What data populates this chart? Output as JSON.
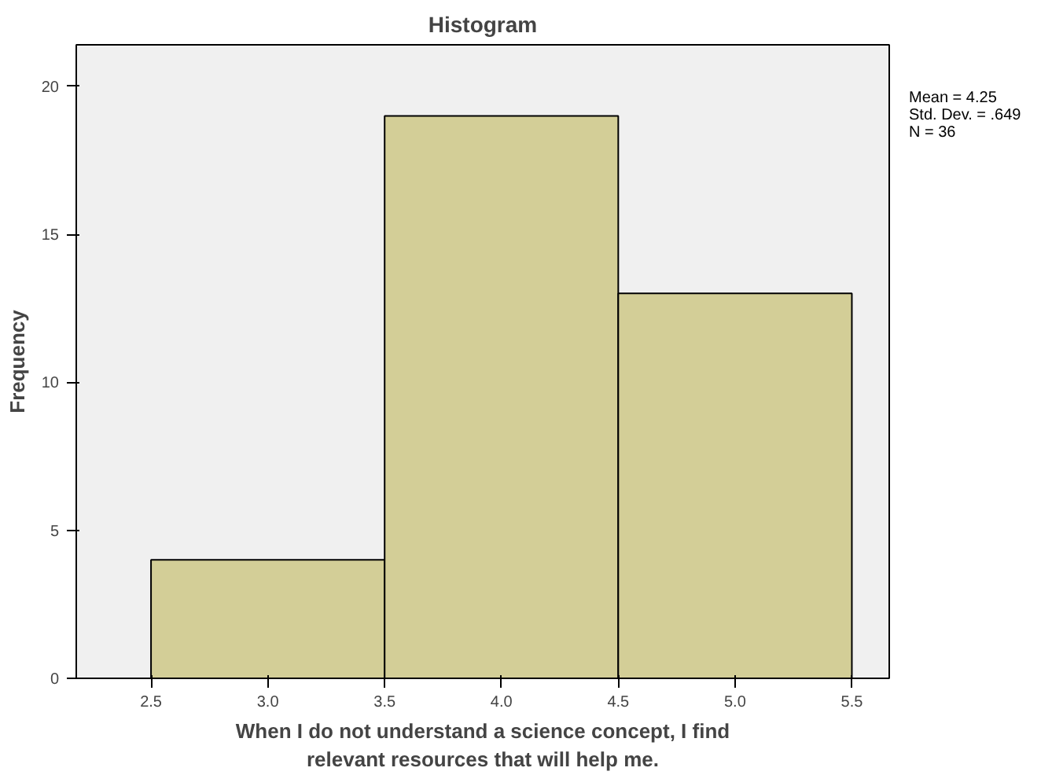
{
  "chart_data": {
    "type": "histogram",
    "title": "Histogram",
    "xlabel": "When I do not understand a science concept, I find\nrelevant resources that will help me.",
    "ylabel": "Frequency",
    "bins": [
      2.5,
      3.5,
      4.5,
      5.5
    ],
    "values": [
      4,
      19,
      13
    ],
    "color": "#d3ce97",
    "xlim": [
      2.18,
      5.66
    ],
    "ylim": [
      0,
      21.4
    ],
    "xticks": [
      2.5,
      {
        "value": 3.0,
        "label": "3.0"
      },
      3.5,
      {
        "value": 4.0,
        "label": "4.0"
      },
      4.5,
      {
        "value": 5.0,
        "label": "5.0"
      },
      5.5
    ],
    "yticks": [
      0,
      5,
      10,
      15,
      20
    ],
    "grid": false,
    "annotations": [
      "Mean = 4.25",
      "Std. Dev. = .649",
      "N = 36"
    ]
  }
}
